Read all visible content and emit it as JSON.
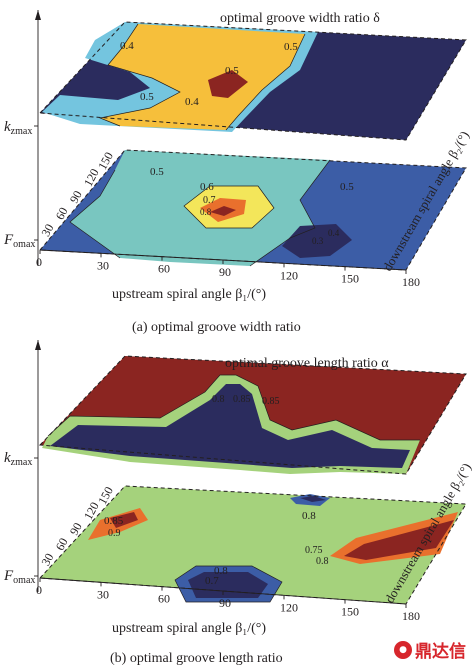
{
  "panels": [
    {
      "caption": "(a) optimal groove width ratio",
      "top_title": "optimal groove width ratio δ",
      "y_axis_top": "k",
      "y_axis_top_sub": "zmax",
      "y_axis_bottom": "F",
      "y_axis_bottom_sub": "omax",
      "x_axis_label": "upstream spiral angle β₁/(°)",
      "depth_axis_label": "downstream spiral angle β₂/(°)",
      "top_contour_labels": [
        "0.4",
        "0.5",
        "0.4",
        "0.5",
        "0.5"
      ],
      "bottom_contour_labels": [
        "0.5",
        "0.6",
        "0.7",
        "0.8",
        "0.5",
        "0.4",
        "0.3"
      ]
    },
    {
      "caption": "(b) optimal groove length ratio",
      "top_title": "optimal groove length ratio α",
      "y_axis_top": "k",
      "y_axis_top_sub": "zmax",
      "y_axis_bottom": "F",
      "y_axis_bottom_sub": "omax",
      "x_axis_label": "upstream spiral angle β₁/(°)",
      "depth_axis_label": "downstream spiral angle β₂/(°)",
      "top_contour_labels": [
        "0.8",
        "0.85",
        "0.85"
      ],
      "bottom_contour_labels": [
        "0.85",
        "0.9",
        "0.8",
        "0.8",
        "0.75",
        "0.8",
        "0.7"
      ]
    }
  ],
  "chart_data": [
    {
      "type": "contour",
      "panel": "a",
      "x": {
        "label": "upstream spiral angle β₁/(°)",
        "ticks": [
          0,
          30,
          60,
          90,
          120,
          150,
          180
        ]
      },
      "depth": {
        "label": "downstream spiral angle β₂/(°)",
        "ticks": [
          30,
          60,
          90,
          120,
          150
        ]
      },
      "planes": [
        {
          "axis_label": "kzmax",
          "title": "optimal groove width ratio δ",
          "levels": [
            0.4,
            0.5
          ],
          "colors": [
            "#2b2c5e",
            "#74c5df",
            "#f6bf3b",
            "#8b2521"
          ]
        },
        {
          "axis_label": "Fomax",
          "levels": [
            0.3,
            0.4,
            0.5,
            0.6,
            0.7,
            0.8
          ],
          "colors": [
            "#2b2c5e",
            "#3c5da6",
            "#79c6c0",
            "#f3e65a",
            "#e9702d"
          ]
        }
      ]
    },
    {
      "type": "contour",
      "panel": "b",
      "x": {
        "label": "upstream spiral angle β₁/(°)",
        "ticks": [
          0,
          30,
          60,
          90,
          120,
          150,
          180
        ]
      },
      "depth": {
        "label": "downstream spiral angle β₂/(°)",
        "ticks": [
          30,
          60,
          90,
          120,
          150
        ]
      },
      "planes": [
        {
          "axis_label": "kzmax",
          "title": "optimal groove length ratio α",
          "levels": [
            0.8,
            0.85
          ],
          "colors": [
            "#2b2c5e",
            "#a5d27c",
            "#8b2521"
          ]
        },
        {
          "axis_label": "Fomax",
          "levels": [
            0.7,
            0.75,
            0.8,
            0.85,
            0.9
          ],
          "colors": [
            "#2b2c5e",
            "#3c5da6",
            "#a5d27c",
            "#e9702d",
            "#8b2521"
          ]
        }
      ]
    }
  ],
  "x_ticks": [
    "0",
    "30",
    "60",
    "90",
    "120",
    "150",
    "180"
  ],
  "depth_ticks": [
    "30",
    "60",
    "90",
    "120",
    "150"
  ],
  "watermark": "鼎达信"
}
